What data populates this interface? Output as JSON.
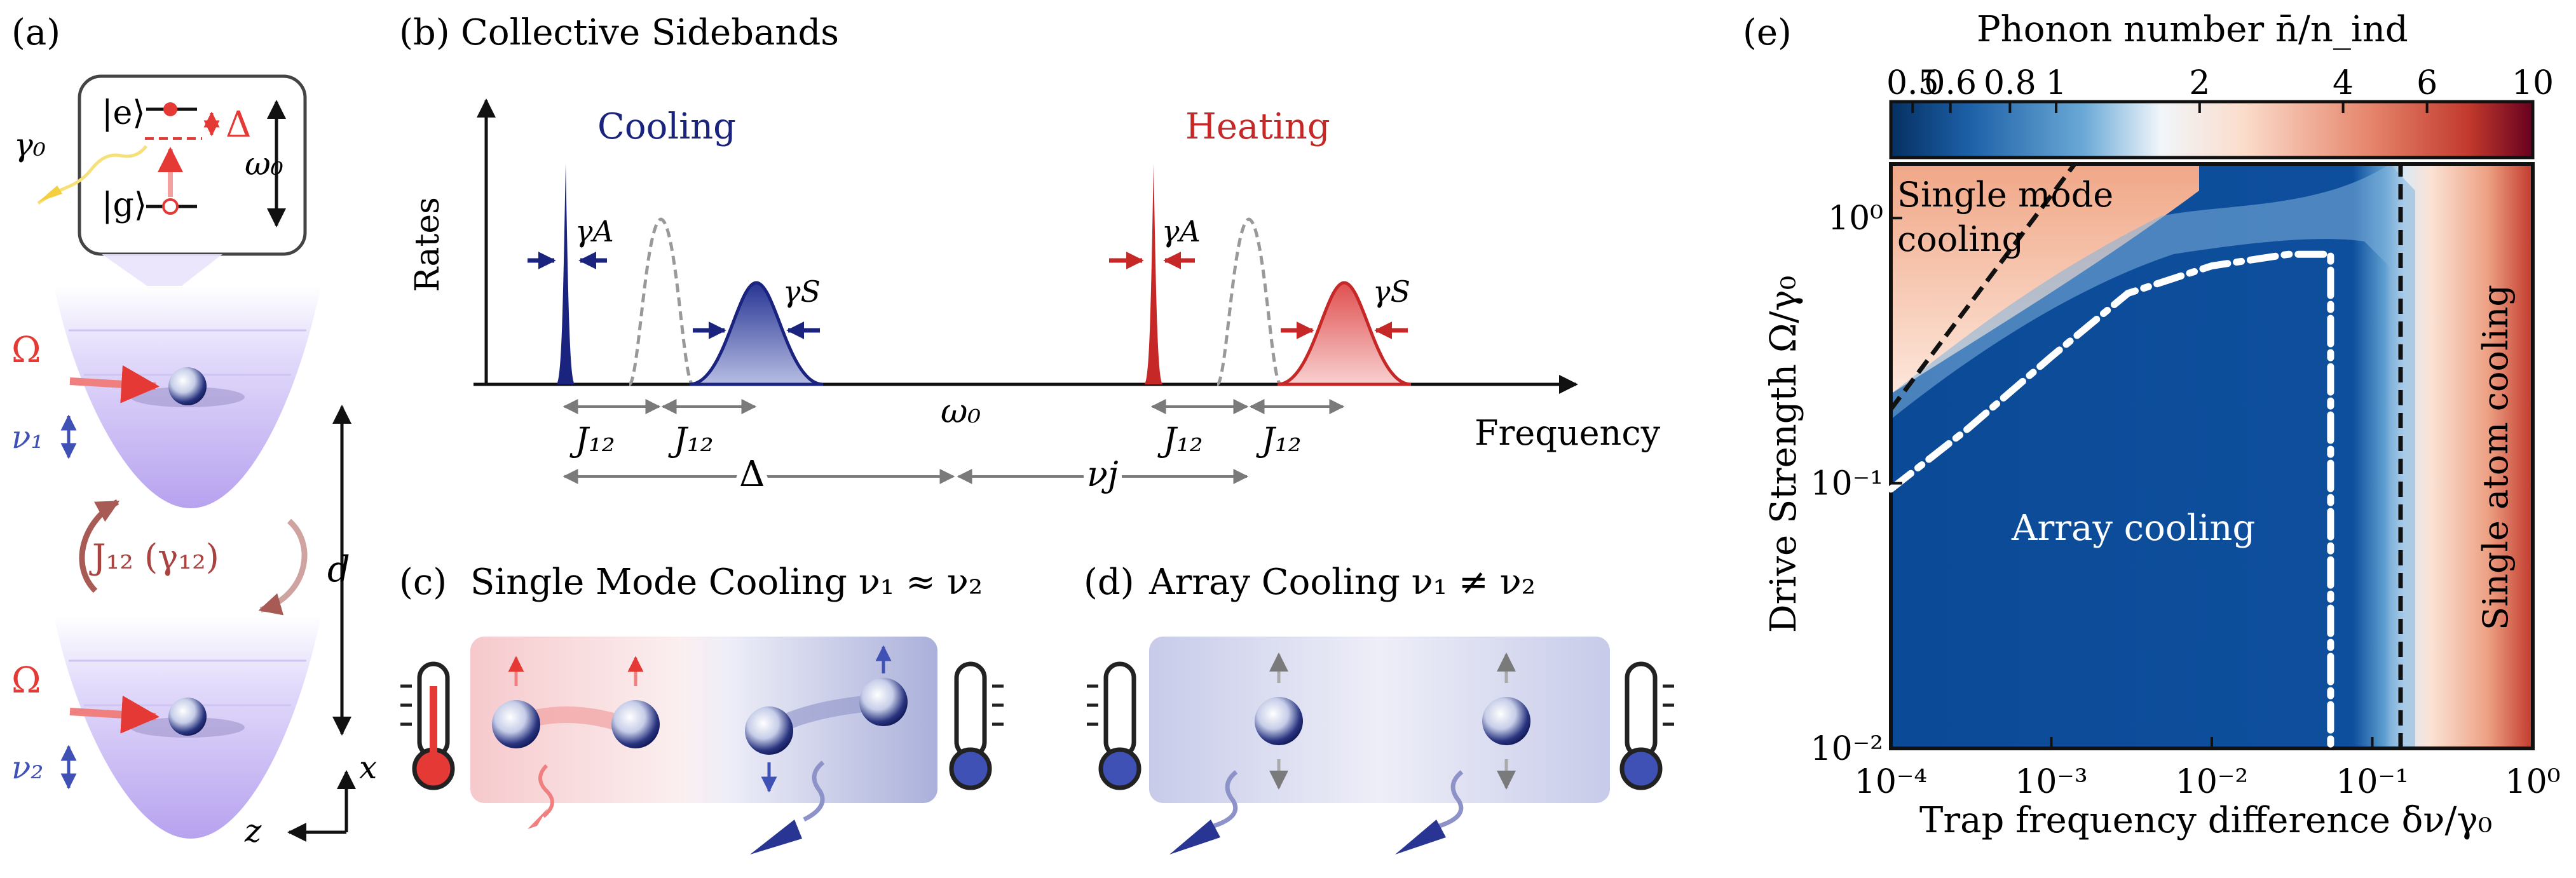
{
  "panels": {
    "a": {
      "label": "(a)",
      "gamma0": "γ₀",
      "ket_e": "|e⟩",
      "ket_g": "|g⟩",
      "delta": "Δ",
      "omega0": "ω₀",
      "drive_1": "Ω",
      "drive_2": "Ω",
      "nu1": "ν₁",
      "nu2": "ν₂",
      "coupling": "J₁₂ (γ₁₂)",
      "distance": "d",
      "axis_x": "x",
      "axis_z": "z"
    },
    "b": {
      "label": "(b)",
      "title": "Collective Sidebands",
      "y_label": "Rates",
      "x_label": "Frequency",
      "cooling": "Cooling",
      "heating": "Heating",
      "gamma_a_cool": "γA",
      "gamma_s_cool": "γS",
      "gamma_a_heat": "γA",
      "gamma_s_heat": "γS",
      "j12_1": "J₁₂",
      "j12_2": "J₁₂",
      "j12_3": "J₁₂",
      "j12_4": "J₁₂",
      "omega0": "ω₀",
      "delta": "Δ",
      "nu_j": "νj"
    },
    "c": {
      "label": "(c)",
      "title": "Single Mode Cooling ν₁ ≈ ν₂"
    },
    "d": {
      "label": "(d)",
      "title": "Array Cooling ν₁ ≠ ν₂"
    },
    "e": {
      "label": "(e)",
      "colorbar_title": "Phonon number n̄/n_ind",
      "colorbar_ticks": [
        "0.5",
        "0.6",
        "0.8",
        "1",
        "2",
        "4",
        "6",
        "10"
      ],
      "y_label": "Drive Strength Ω/γ₀",
      "x_label": "Trap frequency difference δν/γ₀",
      "x_ticks": [
        "10⁻⁴",
        "10⁻³",
        "10⁻²",
        "10⁻¹",
        "10⁰"
      ],
      "y_ticks": [
        "10⁰",
        "10⁻¹",
        "10⁻²"
      ],
      "region_single_mode_1": "Single mode",
      "region_single_mode_2": "cooling",
      "region_array": "Array cooling",
      "region_single_atom": "Single atom cooling"
    }
  },
  "colors": {
    "cool": "#1a237e",
    "heat": "#c62828",
    "arrow_gray": "#7a7a7a",
    "well": "#b9a7ee",
    "map_blue": "#0b4a96",
    "map_red": "#c23a2d"
  },
  "chart_data": {
    "type": "heatmap",
    "title": "",
    "xlabel": "Trap frequency difference δν/γ₀",
    "ylabel": "Drive Strength Ω/γ₀",
    "colorbar_label": "Phonon number n̄/n_ind",
    "x_scale": "log",
    "y_scale": "log",
    "xlim": [
      0.0001,
      1
    ],
    "ylim": [
      0.01,
      1.6
    ],
    "colorbar_scale": "log",
    "colorbar_range": [
      0.45,
      10
    ],
    "colorbar_ticks": [
      0.5,
      0.6,
      0.8,
      1,
      2,
      4,
      6,
      10
    ],
    "boundaries": {
      "single_mode_dashed": {
        "x": [
          0.0001,
          0.0014
        ],
        "y": [
          0.19,
          1.6
        ]
      },
      "single_atom_dashed": {
        "x": [
          0.15,
          0.15
        ],
        "y": [
          0.01,
          1.6
        ]
      },
      "array_dashdot": {
        "x": [
          0.0001,
          0.0003,
          0.001,
          0.003,
          0.01,
          0.03,
          0.055,
          0.055
        ],
        "y": [
          0.095,
          0.16,
          0.3,
          0.52,
          0.66,
          0.73,
          0.73,
          0.01
        ]
      }
    },
    "regions": [
      "Single mode cooling",
      "Array cooling",
      "Single atom cooling"
    ]
  }
}
